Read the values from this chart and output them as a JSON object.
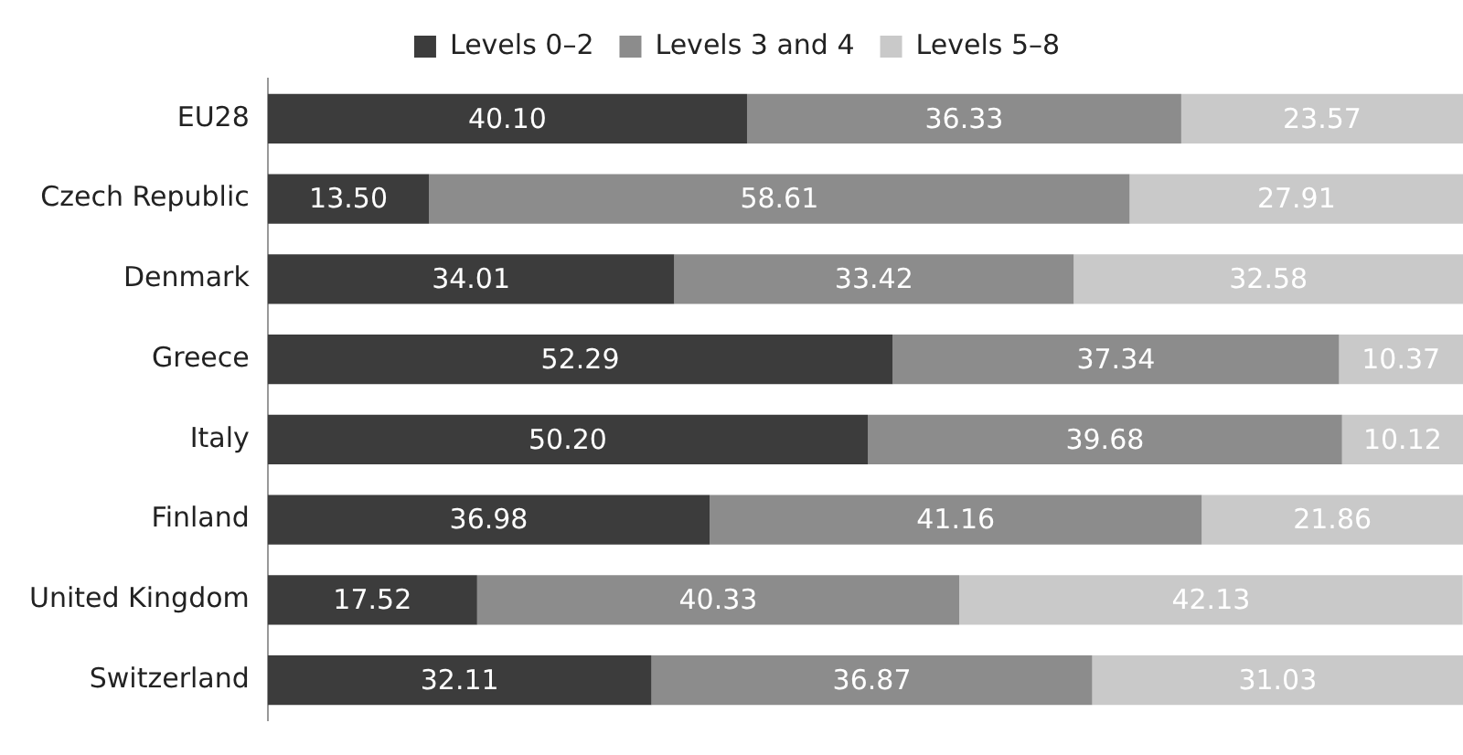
{
  "chart_data": {
    "type": "bar",
    "orientation": "horizontal",
    "stacked": true,
    "categories": [
      "EU28",
      "Czech Republic",
      "Denmark",
      "Greece",
      "Italy",
      "Finland",
      "United Kingdom",
      "Switzerland"
    ],
    "series": [
      {
        "name": "Levels 0–2",
        "color": "#3c3c3c",
        "values": [
          40.1,
          13.5,
          34.01,
          52.29,
          50.2,
          36.98,
          17.52,
          32.11
        ],
        "value_labels": [
          "40.10",
          "13.50",
          "34.01",
          "52.29",
          "50.20",
          "36.98",
          "17.52",
          "32.11"
        ]
      },
      {
        "name": "Levels 3 and 4",
        "color": "#8c8c8c",
        "values": [
          36.33,
          58.61,
          33.42,
          37.34,
          39.68,
          41.16,
          40.33,
          36.87
        ],
        "value_labels": [
          "36.33",
          "58.61",
          "33.42",
          "37.34",
          "39.68",
          "41.16",
          "40.33",
          "36.87"
        ]
      },
      {
        "name": "Levels 5–8",
        "color": "#c9c9c9",
        "values": [
          23.57,
          27.91,
          32.58,
          10.37,
          10.12,
          21.86,
          42.13,
          31.03
        ],
        "value_labels": [
          "23.57",
          "27.91",
          "32.58",
          "10.37",
          "10.12",
          "21.86",
          "42.13",
          "31.03"
        ]
      }
    ],
    "xlim": [
      0,
      100
    ],
    "tick_labels": "y",
    "legend": "top"
  }
}
